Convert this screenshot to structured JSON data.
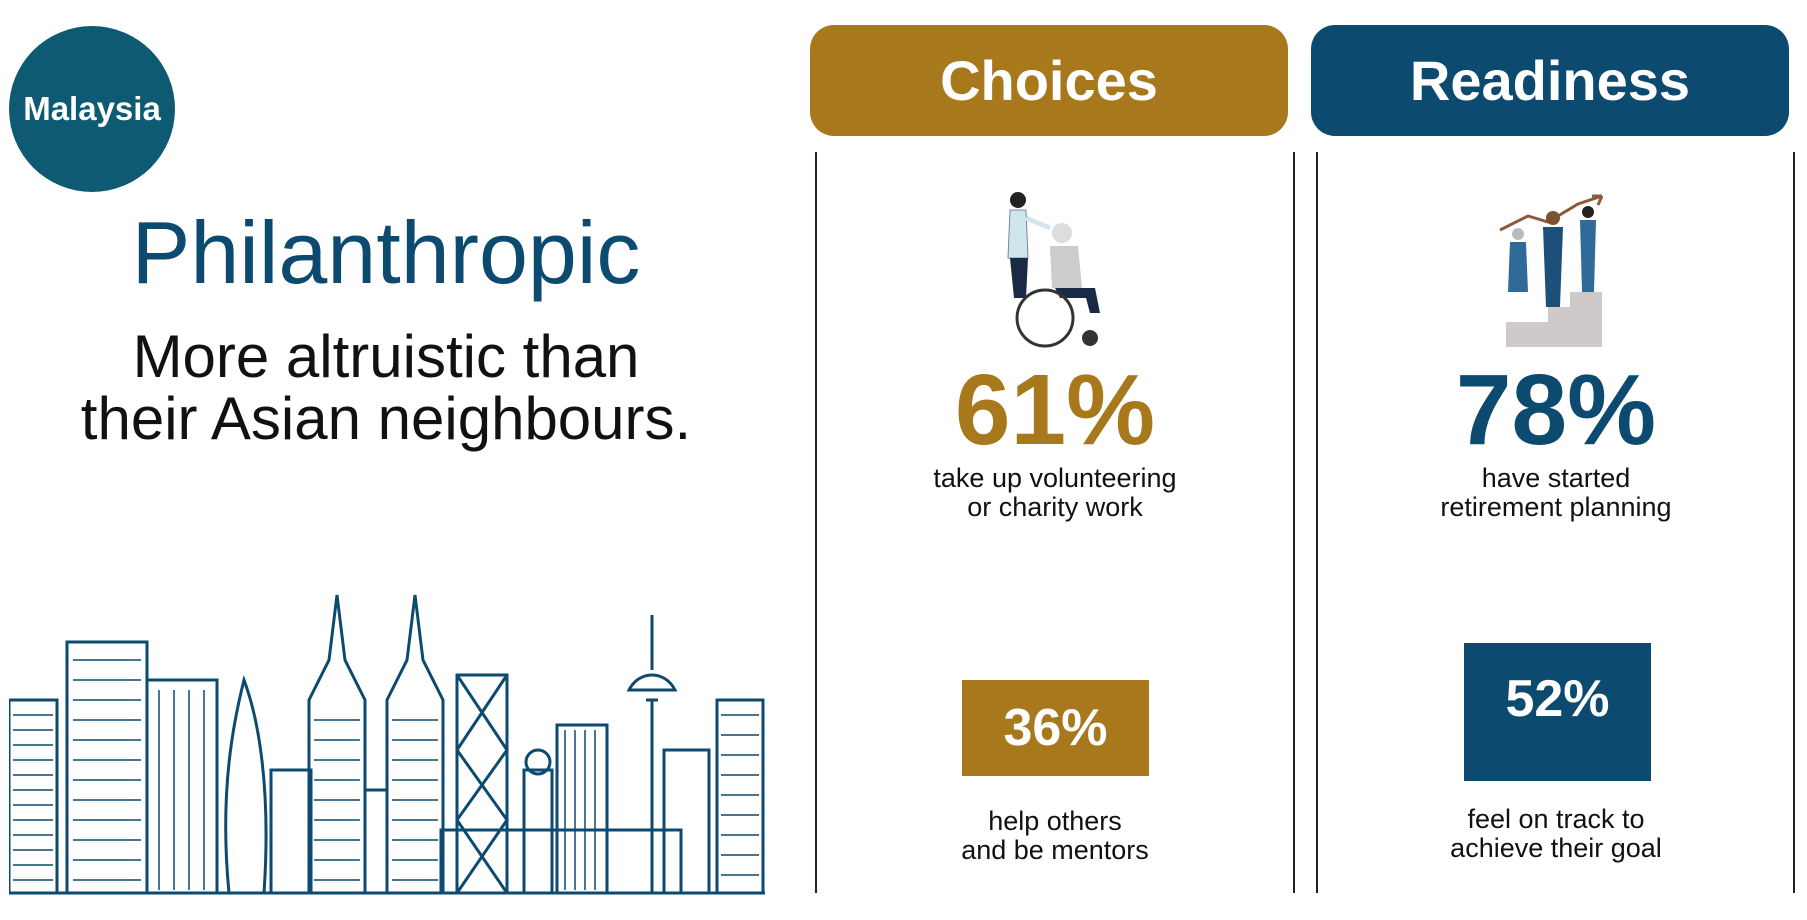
{
  "badge": "Malaysia",
  "headline": "Philanthropic",
  "tagline": [
    "More altruistic than",
    "their Asian neighbours."
  ],
  "columns": [
    {
      "title": "Choices",
      "main": {
        "value": "61%",
        "caption": [
          "take up volunteering",
          "or charity work"
        ]
      },
      "secondary": {
        "value": "36%",
        "caption": [
          "help others",
          "and be mentors"
        ]
      }
    },
    {
      "title": "Readiness",
      "main": {
        "value": "78%",
        "caption": [
          "have started",
          "retirement planning"
        ]
      },
      "secondary": {
        "value": "52%",
        "caption": [
          "feel on track to",
          "achieve their goal"
        ]
      }
    }
  ]
}
